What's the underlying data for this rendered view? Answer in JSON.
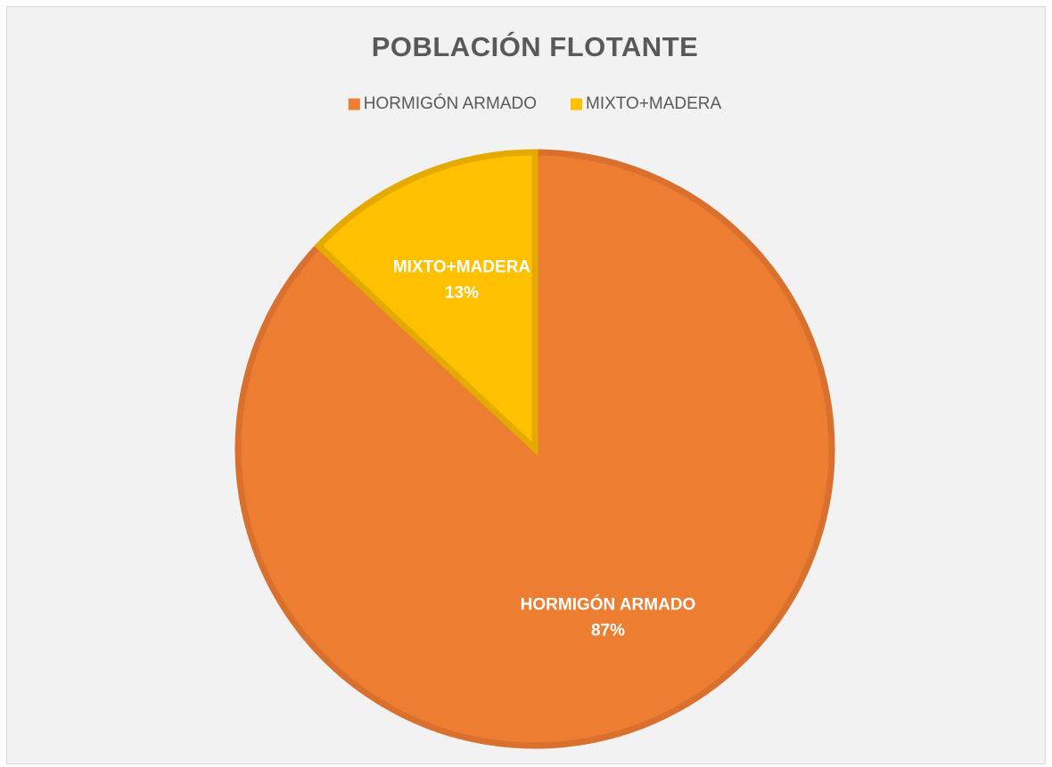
{
  "chart_data": {
    "type": "pie",
    "title": "POBLACIÓN FLOTANTE",
    "categories": [
      "HORMIGÓN ARMADO",
      "MIXTO+MADERA"
    ],
    "values": [
      87,
      13
    ],
    "value_labels": [
      "87%",
      "13%"
    ],
    "colors": [
      "#ED7D31",
      "#FFC000"
    ],
    "edgecolors": [
      "#D9702E",
      "#E4AA00"
    ],
    "legend": "top"
  }
}
